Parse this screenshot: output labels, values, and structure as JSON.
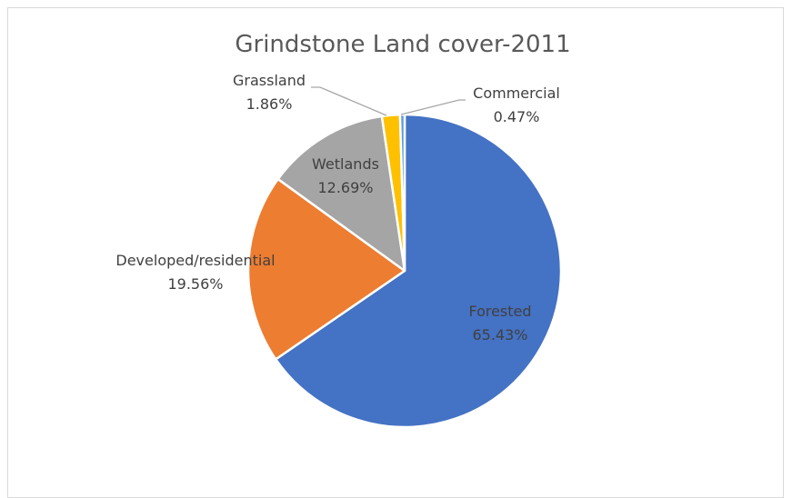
{
  "chart_data": {
    "type": "pie",
    "title": "Grindstone Land cover-2011",
    "legend": "none",
    "slices": [
      {
        "label": "Forested",
        "value": 65.43,
        "display": "65.43%",
        "color": "#4472c4"
      },
      {
        "label": "Developed/residential",
        "value": 19.56,
        "display": "19.56%",
        "color": "#ed7d31"
      },
      {
        "label": "Wetlands",
        "value": 12.69,
        "display": "12.69%",
        "color": "#a5a5a5"
      },
      {
        "label": "Grassland",
        "value": 1.86,
        "display": "1.86%",
        "color": "#ffc000"
      },
      {
        "label": "Commercial",
        "value": 0.47,
        "display": "0.47%",
        "color": "#5b9bd5"
      }
    ]
  }
}
